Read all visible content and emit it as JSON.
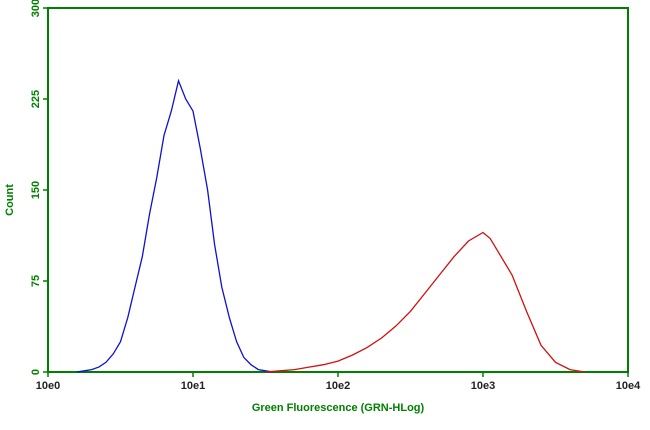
{
  "chart_data": {
    "type": "line",
    "x_label": "Green Fluorescence (GRN-HLog)",
    "y_label": "Count",
    "xscale": "log",
    "xlim": [
      1,
      10000
    ],
    "xticks": [
      {
        "value": 1,
        "label": "10e0"
      },
      {
        "value": 10,
        "label": "10e1"
      },
      {
        "value": 100,
        "label": "10e2"
      },
      {
        "value": 1000,
        "label": "10e3"
      },
      {
        "value": 10000,
        "label": "10e4"
      }
    ],
    "ylim": [
      0,
      300
    ],
    "yticks": [
      0,
      75,
      150,
      225,
      300
    ],
    "axis_color": "#008000",
    "series": [
      {
        "color": "#1010d0",
        "x": [
          1.58,
          1.78,
          2.0,
          2.24,
          2.51,
          2.82,
          3.16,
          3.55,
          3.98,
          4.47,
          5.01,
          5.62,
          6.31,
          7.08,
          7.94,
          8.91,
          10.0,
          11.2,
          12.6,
          14.1,
          15.8,
          17.8,
          20.0,
          22.4,
          25.1,
          28.2,
          31.6,
          35.5
        ],
        "values": [
          0,
          1,
          2,
          4,
          8,
          15,
          25,
          45,
          70,
          95,
          130,
          160,
          195,
          215,
          240,
          225,
          215,
          185,
          150,
          105,
          70,
          45,
          25,
          12,
          6,
          2,
          1,
          0
        ]
      },
      {
        "color": "#d01010",
        "x": [
          31.6,
          39.8,
          50.1,
          63.1,
          79.4,
          100,
          126,
          158,
          200,
          251,
          316,
          398,
          501,
          631,
          794,
          1000,
          1122,
          1259,
          1585,
          1995,
          2512,
          3162,
          3981,
          5012
        ],
        "values": [
          0,
          1,
          2,
          4,
          6,
          9,
          14,
          20,
          28,
          38,
          50,
          65,
          80,
          95,
          108,
          115,
          110,
          100,
          80,
          50,
          22,
          8,
          2,
          0
        ]
      }
    ]
  }
}
